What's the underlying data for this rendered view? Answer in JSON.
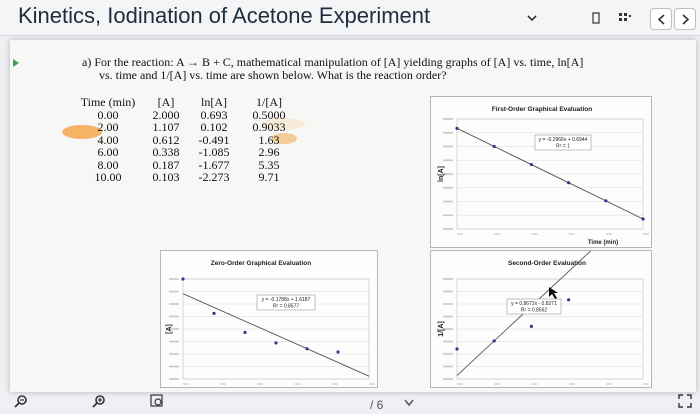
{
  "window": {
    "title": "Kinetics, Iodination of Acetone Experiment"
  },
  "question": {
    "line1": "a)  For the reaction: A → B + C, mathematical manipulation of [A] yielding graphs of [A] vs. time, ln[A]",
    "line2": "vs. time and 1/[A] vs. time are shown below. What is the reaction order?"
  },
  "table": {
    "headers": [
      "Time (min)",
      "[A]",
      "ln[A]",
      "1/[A]"
    ],
    "rows": [
      [
        "0.00",
        "2.000",
        "0.693",
        "0.5000"
      ],
      [
        "2.00",
        "1.107",
        "0.102",
        "0.9033"
      ],
      [
        "4.00",
        "0.612",
        "-0.491",
        "1.63"
      ],
      [
        "6.00",
        "0.338",
        "-1.085",
        "2.96"
      ],
      [
        "8.00",
        "0.187",
        "-1.677",
        "5.35"
      ],
      [
        "10.00",
        "0.103",
        "-2.273",
        "9.71"
      ]
    ]
  },
  "charts": {
    "first": {
      "title": "First-Order Graphical Evaluation",
      "ylabel": "ln[A]",
      "xlabel": "Time (min)",
      "eq": "y = -0.2966x + 0.6944",
      "r2": "R² = 1"
    },
    "zero": {
      "title": "Zero-Order Graphical Evaluation",
      "ylabel": "[A]",
      "eq": "y = -0.1788x + 1.6187",
      "r2": "R² = 0.8577"
    },
    "second": {
      "title": "Second-Order Evaluation",
      "ylabel": "1/[A]",
      "eq": "y = 0.8672x - 0.8271",
      "r2": "R² = 0.8562"
    }
  },
  "chart_data": [
    {
      "type": "scatter",
      "title": "First-Order Graphical Evaluation",
      "xlabel": "Time (min)",
      "ylabel": "ln[A]",
      "x": [
        0,
        2,
        4,
        6,
        8,
        10
      ],
      "y": [
        0.693,
        0.102,
        -0.491,
        -1.085,
        -1.677,
        -2.273
      ],
      "trendline": {
        "slope": -0.2966,
        "intercept": 0.6944,
        "r2": 1
      }
    },
    {
      "type": "scatter",
      "title": "Zero-Order Graphical Evaluation",
      "ylabel": "[A]",
      "x": [
        0,
        2,
        4,
        6,
        8,
        10
      ],
      "y": [
        2.0,
        1.107,
        0.612,
        0.338,
        0.187,
        0.103
      ],
      "trendline": {
        "slope": -0.1788,
        "intercept": 1.6187,
        "r2": 0.8577
      }
    },
    {
      "type": "scatter",
      "title": "Second-Order Evaluation",
      "ylabel": "1/[A]",
      "x": [
        0,
        2,
        4,
        6,
        8,
        10
      ],
      "y": [
        0.5,
        0.9033,
        1.63,
        2.96,
        5.35,
        9.71
      ],
      "trendline": {
        "slope": 0.8672,
        "intercept": -0.8271,
        "r2": 0.8562
      }
    }
  ],
  "viewer": {
    "page_indicator": "/ 6"
  },
  "colors": {
    "highlight": "#f4a74a",
    "point": "#2a3a8c",
    "trendline": "#555555"
  }
}
